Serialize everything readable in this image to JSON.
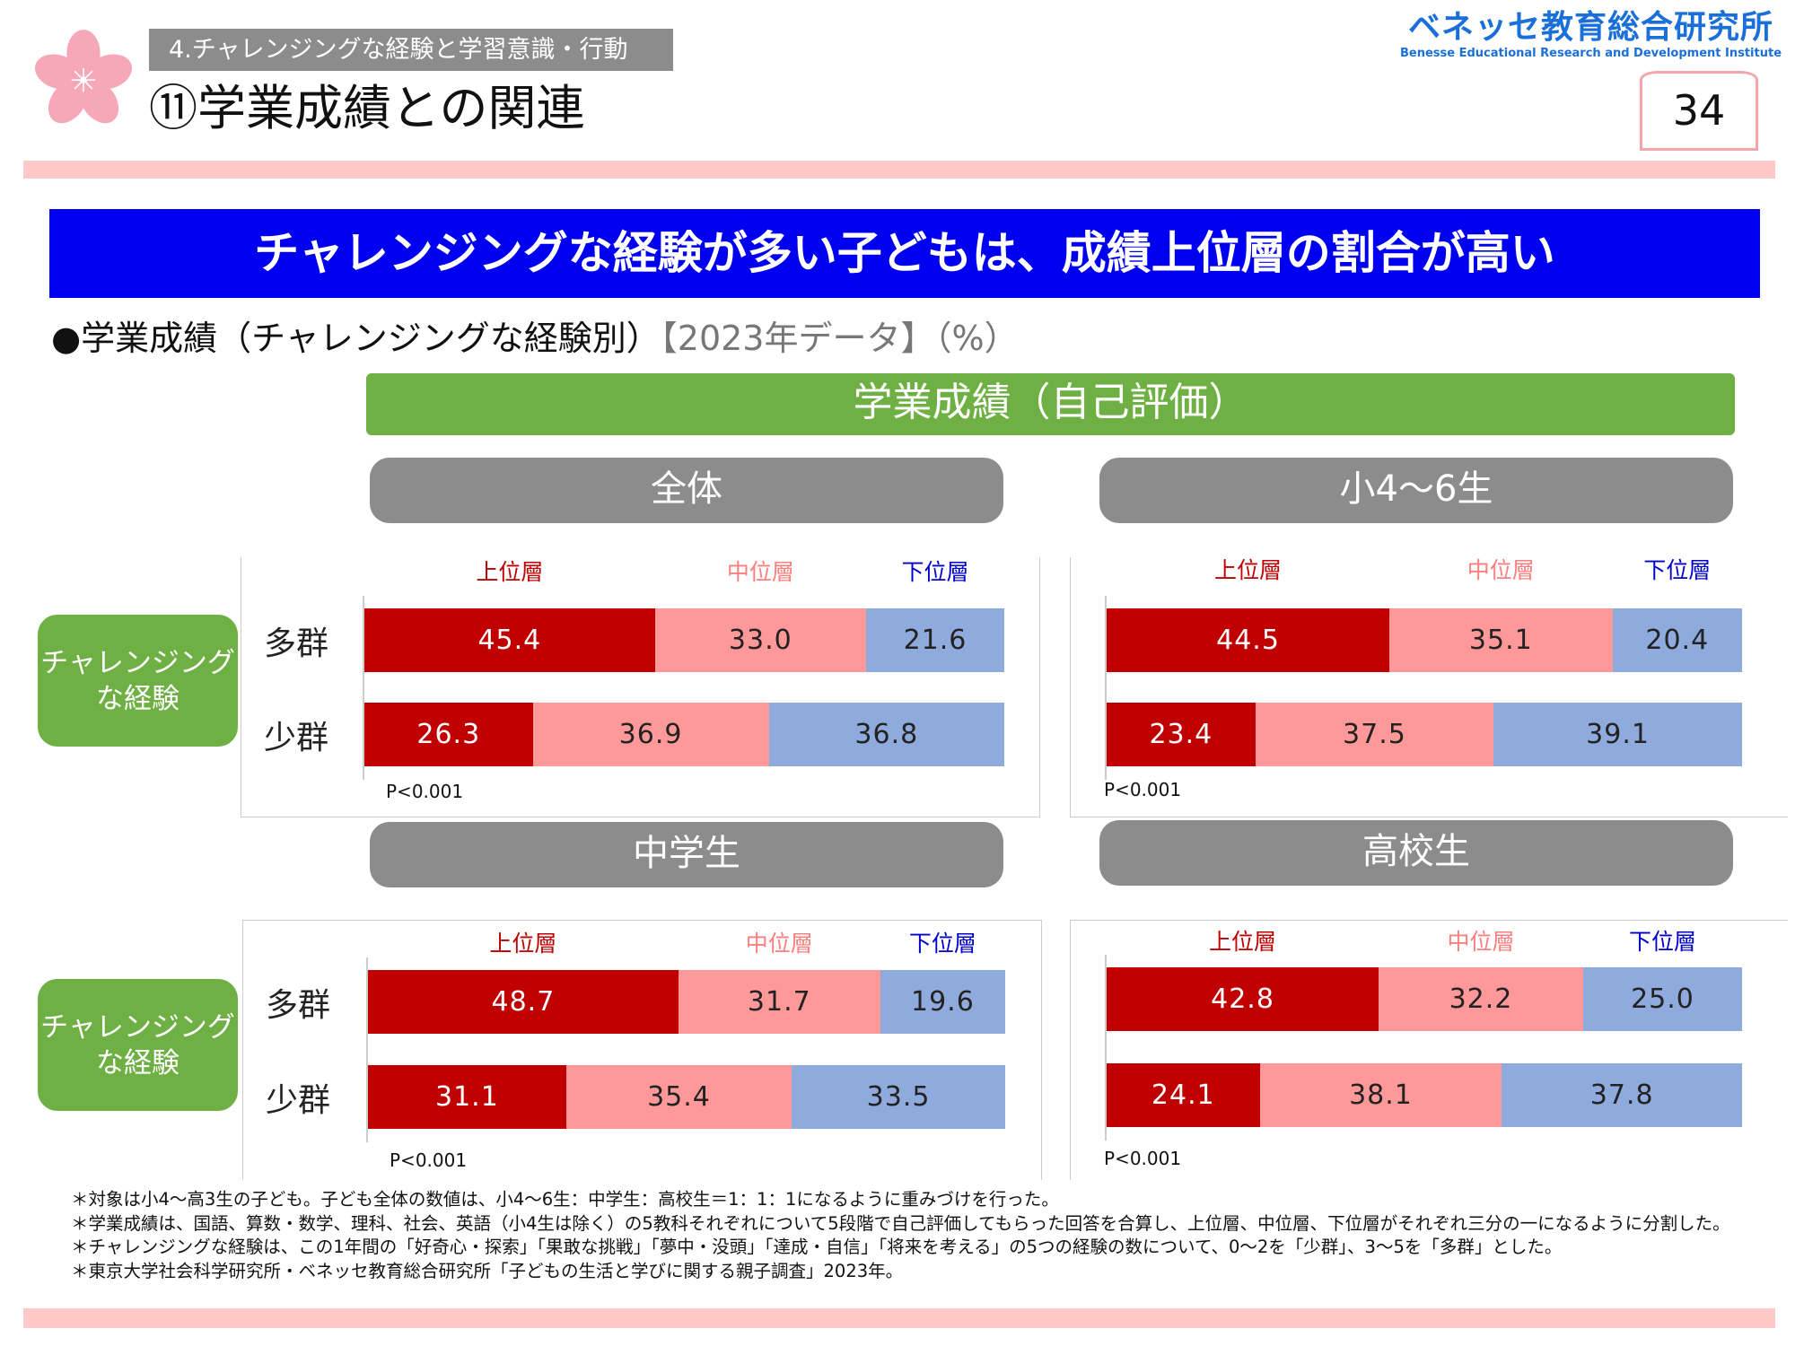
{
  "header": {
    "section_tag": "4.チャレンジングな経験と学習意識・行動",
    "title": "⑪学業成績との関連",
    "logo_jp": "ベネッセ教育総合研究所",
    "logo_en": "Benesse  Educational Research and Development Institute",
    "page_number": "34"
  },
  "banner": "チャレンジングな経験が多い子どもは、成績上位層の割合が高い",
  "subtitle": {
    "main": "●学業成績（チャレンジングな経験別）",
    "note": "【2023年データ】（%）"
  },
  "chart_header": "学業成績（自己評価）",
  "side_label": "チャレンジング\nな経験",
  "side_label_lines": [
    "チャレンジング",
    "な経験"
  ],
  "colors": {
    "upper": "#c00000",
    "middle": "#ff9999",
    "lower": "#8faadc",
    "label_upper": "#c00000",
    "label_middle": "#ff7f7f",
    "label_lower": "#0000cc"
  },
  "chart_data": [
    {
      "type": "bar",
      "stacked": true,
      "orientation": "horizontal",
      "title": "全体",
      "categories": [
        "多群",
        "少群"
      ],
      "series": [
        {
          "name": "上位層",
          "values": [
            45.4,
            26.3
          ]
        },
        {
          "name": "中位層",
          "values": [
            33.0,
            36.9
          ]
        },
        {
          "name": "下位層",
          "values": [
            21.6,
            36.8
          ]
        }
      ],
      "value_labels": [
        [
          "45.4",
          "33.0",
          "21.6"
        ],
        [
          "26.3",
          "36.9",
          "36.8"
        ]
      ],
      "note": "P<0.001"
    },
    {
      "type": "bar",
      "stacked": true,
      "orientation": "horizontal",
      "title": "小4～6生",
      "categories": [
        "多群",
        "少群"
      ],
      "series": [
        {
          "name": "上位層",
          "values": [
            44.5,
            23.4
          ]
        },
        {
          "name": "中位層",
          "values": [
            35.1,
            37.5
          ]
        },
        {
          "name": "下位層",
          "values": [
            20.4,
            39.1
          ]
        }
      ],
      "value_labels": [
        [
          "44.5",
          "35.1",
          "20.4"
        ],
        [
          "23.4",
          "37.5",
          "39.1"
        ]
      ],
      "note": "P<0.001"
    },
    {
      "type": "bar",
      "stacked": true,
      "orientation": "horizontal",
      "title": "中学生",
      "categories": [
        "多群",
        "少群"
      ],
      "series": [
        {
          "name": "上位層",
          "values": [
            48.7,
            31.1
          ]
        },
        {
          "name": "中位層",
          "values": [
            31.7,
            35.4
          ]
        },
        {
          "name": "下位層",
          "values": [
            19.6,
            33.5
          ]
        }
      ],
      "value_labels": [
        [
          "48.7",
          "31.7",
          "19.6"
        ],
        [
          "31.1",
          "35.4",
          "33.5"
        ]
      ],
      "note": "P<0.001"
    },
    {
      "type": "bar",
      "stacked": true,
      "orientation": "horizontal",
      "title": "高校生",
      "categories": [
        "多群",
        "少群"
      ],
      "series": [
        {
          "name": "上位層",
          "values": [
            42.8,
            24.1
          ]
        },
        {
          "name": "中位層",
          "values": [
            32.2,
            38.1
          ]
        },
        {
          "name": "下位層",
          "values": [
            25.0,
            37.8
          ]
        }
      ],
      "value_labels": [
        [
          "42.8",
          "32.2",
          "25.0"
        ],
        [
          "24.1",
          "38.1",
          "37.8"
        ]
      ],
      "note": "P<0.001"
    }
  ],
  "footnotes": [
    "＊対象は小4～高3生の子ども。子ども全体の数値は、小4～6生：中学生：高校生＝1：1：1になるように重みづけを行った。",
    "＊学業成績は、国語、算数・数学、理科、社会、英語（小4生は除く）の5教科それぞれについて5段階で自己評価してもらった回答を合算し、上位層、中位層、下位層がそれぞれ三分の一になるように分割した。",
    "＊チャレンジングな経験は、この1年間の「好奇心・探索」「果敢な挑戦」「夢中・没頭」「達成・自信」「将来を考える」の5つの経験の数について、0～2を「少群」、3～5を「多群」とした。",
    "＊東京大学社会科学研究所・ベネッセ教育総合研究所「子どもの生活と学びに関する親子調査」2023年。"
  ]
}
